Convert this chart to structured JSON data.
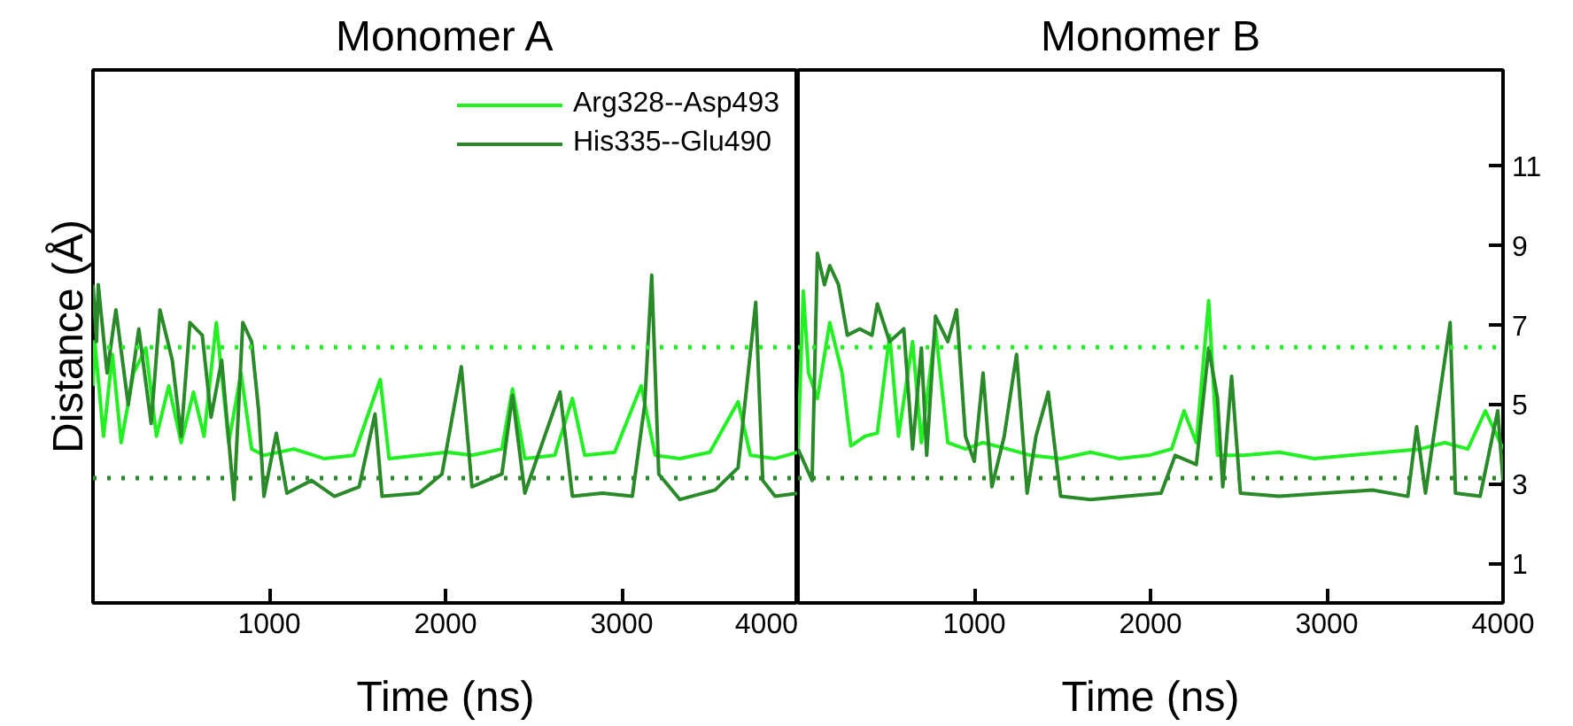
{
  "chart_data": [
    {
      "type": "line",
      "title": "Monomer A",
      "xlabel": "Time (ns)",
      "ylabel": "Distance (Å)",
      "xlim": [
        0,
        4000
      ],
      "xticks": [
        1000,
        2000,
        3000,
        4000
      ],
      "ylim": [
        0,
        13.4
      ],
      "tick_labels": "x",
      "legend": "top right",
      "grid": false,
      "series": [
        {
          "name": "Arg328--Asp493",
          "color": "#22f022",
          "x": [
            0,
            10,
            60,
            110,
            160,
            230,
            300,
            360,
            430,
            500,
            570,
            630,
            700,
            770,
            840,
            900,
            970,
            1140,
            1310,
            1480,
            1630,
            1680,
            1850,
            2010,
            2150,
            2320,
            2380,
            2450,
            2620,
            2720,
            2790,
            2960,
            3110,
            3190,
            3330,
            3500,
            3660,
            3730,
            3870,
            4000
          ],
          "values": [
            5.46,
            6.57,
            4.19,
            6.25,
            4.03,
            5.78,
            6.41,
            4.19,
            5.46,
            4.03,
            5.3,
            4.19,
            7.05,
            4.03,
            5.78,
            3.87,
            3.71,
            3.87,
            3.63,
            3.71,
            5.62,
            3.63,
            3.71,
            3.79,
            3.71,
            3.87,
            5.38,
            3.63,
            3.71,
            5.14,
            3.71,
            3.79,
            5.46,
            3.71,
            3.63,
            3.79,
            5.06,
            3.71,
            3.63,
            3.79
          ]
        },
        {
          "name": "His335--Glu490",
          "color": "#2a8a2a",
          "x": [
            0,
            20,
            30,
            80,
            130,
            200,
            260,
            330,
            380,
            450,
            500,
            550,
            620,
            670,
            730,
            800,
            850,
            900,
            940,
            970,
            1040,
            1100,
            1240,
            1370,
            1510,
            1600,
            1640,
            1850,
            1980,
            2090,
            2150,
            2320,
            2380,
            2450,
            2650,
            2720,
            2890,
            3060,
            3130,
            3170,
            3210,
            3330,
            3530,
            3660,
            3760,
            3800,
            3870,
            4000
          ],
          "values": [
            8.0,
            6.57,
            8.0,
            5.78,
            7.37,
            4.98,
            6.89,
            4.51,
            7.37,
            6.1,
            4.19,
            7.05,
            6.73,
            4.67,
            6.1,
            2.6,
            7.05,
            6.57,
            4.83,
            2.68,
            4.27,
            2.76,
            3.08,
            2.68,
            2.92,
            4.75,
            2.68,
            2.76,
            3.24,
            5.94,
            2.92,
            3.24,
            5.22,
            2.76,
            5.3,
            2.68,
            2.76,
            2.68,
            4.98,
            8.24,
            3.24,
            2.6,
            2.84,
            3.4,
            7.56,
            3.08,
            2.68,
            2.76
          ]
        }
      ],
      "ref_lines": [
        {
          "axis": "y",
          "value": 6.43,
          "color": "#22f022",
          "line_style": "dotted"
        },
        {
          "axis": "y",
          "value": 3.14,
          "color": "#2a8a2a",
          "line_style": "dotted"
        }
      ]
    },
    {
      "type": "line",
      "title": "Monomer B",
      "xlabel": "Time (ns)",
      "xlim": [
        0,
        4000
      ],
      "xticks": [
        1000,
        2000,
        3000,
        4000
      ],
      "ylim": [
        0,
        13.4
      ],
      "yticks": [
        1,
        3,
        5,
        7,
        9,
        11
      ],
      "grid": false,
      "series": [
        {
          "color": "#22f022",
          "x": [
            0,
            30,
            60,
            110,
            180,
            250,
            300,
            380,
            450,
            520,
            570,
            650,
            700,
            780,
            850,
            950,
            1050,
            1190,
            1320,
            1490,
            1660,
            1820,
            1990,
            2120,
            2190,
            2260,
            2330,
            2380,
            2530,
            2730,
            2930,
            3130,
            3330,
            3530,
            3670,
            3800,
            3900,
            4000
          ],
          "values": [
            3.87,
            7.84,
            5.78,
            5.14,
            7.05,
            5.78,
            3.95,
            4.19,
            4.27,
            6.73,
            4.19,
            6.57,
            4.03,
            6.89,
            4.03,
            3.87,
            4.03,
            3.87,
            3.71,
            3.63,
            3.79,
            3.63,
            3.71,
            3.87,
            4.83,
            4.03,
            7.6,
            3.71,
            3.71,
            3.79,
            3.63,
            3.71,
            3.79,
            3.87,
            4.03,
            3.87,
            4.83,
            3.87
          ]
        },
        {
          "color": "#2a8a2a",
          "x": [
            0,
            80,
            110,
            150,
            180,
            230,
            280,
            350,
            420,
            450,
            520,
            600,
            650,
            700,
            730,
            780,
            850,
            900,
            950,
            1000,
            1050,
            1100,
            1170,
            1240,
            1300,
            1350,
            1420,
            1490,
            1660,
            1860,
            2060,
            2140,
            2260,
            2330,
            2380,
            2410,
            2460,
            2510,
            2730,
            2990,
            3260,
            3460,
            3510,
            3560,
            3700,
            3730,
            3870,
            3970,
            4000
          ],
          "values": [
            3.87,
            3.08,
            8.79,
            8.0,
            8.48,
            8.0,
            6.73,
            6.89,
            6.73,
            7.52,
            6.57,
            6.89,
            3.87,
            6.41,
            3.71,
            7.21,
            6.57,
            7.37,
            4.19,
            3.56,
            5.78,
            2.92,
            4.19,
            6.25,
            2.76,
            4.19,
            5.3,
            2.68,
            2.6,
            2.68,
            2.76,
            3.71,
            3.48,
            6.41,
            5.14,
            2.92,
            5.7,
            2.76,
            2.68,
            2.76,
            2.84,
            2.68,
            4.43,
            2.76,
            7.05,
            2.76,
            2.68,
            4.83,
            3.08
          ]
        }
      ],
      "ref_lines": [
        {
          "axis": "y",
          "value": 6.43,
          "color": "#22f022",
          "line_style": "dotted"
        },
        {
          "axis": "y",
          "value": 3.14,
          "color": "#2a8a2a",
          "line_style": "dotted"
        }
      ]
    }
  ]
}
